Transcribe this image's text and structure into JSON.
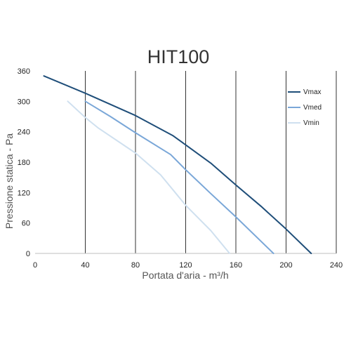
{
  "chart_data": {
    "type": "line",
    "title": "HIT100",
    "xlabel": "Portata d'aria - m³/h",
    "ylabel": "Pressione statica - Pa",
    "xlim": [
      0,
      240
    ],
    "ylim": [
      0,
      360
    ],
    "x_ticks": [
      "0",
      "40",
      "80",
      "120",
      "160",
      "200",
      "240"
    ],
    "y_ticks": [
      "0",
      "60",
      "120",
      "180",
      "240",
      "300",
      "360"
    ],
    "grid": "vertical",
    "legend_position": "top-right",
    "series": [
      {
        "name": "Vmax",
        "color": "#1f4e79",
        "points": [
          [
            7,
            350
          ],
          [
            40,
            316
          ],
          [
            80,
            272
          ],
          [
            110,
            232
          ],
          [
            140,
            178
          ],
          [
            160,
            135
          ],
          [
            180,
            93
          ],
          [
            200,
            48
          ],
          [
            220,
            0
          ]
        ]
      },
      {
        "name": "Vmed",
        "color": "#7aa7d8",
        "points": [
          [
            40,
            300
          ],
          [
            60,
            270
          ],
          [
            80,
            238
          ],
          [
            108,
            195
          ],
          [
            120,
            165
          ],
          [
            140,
            118
          ],
          [
            160,
            72
          ],
          [
            190,
            0
          ]
        ]
      },
      {
        "name": "Vmin",
        "color": "#cfe0ef",
        "points": [
          [
            26,
            300
          ],
          [
            40,
            268
          ],
          [
            50,
            248
          ],
          [
            80,
            198
          ],
          [
            100,
            155
          ],
          [
            120,
            95
          ],
          [
            140,
            45
          ],
          [
            155,
            0
          ]
        ]
      }
    ]
  }
}
